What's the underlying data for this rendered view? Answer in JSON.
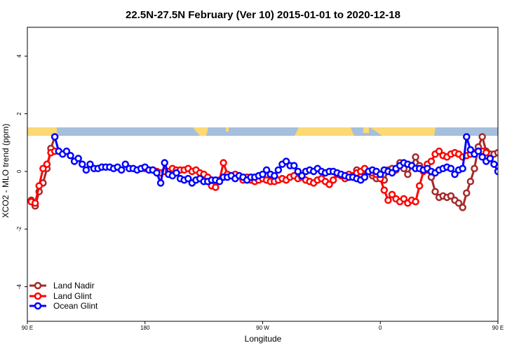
{
  "chart_data": {
    "type": "line",
    "title": "22.5N-27.5N February (Ver 10)   2015-01-01 to 2020-12-18",
    "xlabel": "Longitude",
    "ylabel": "XCO2 - MLO trend (ppm)",
    "xlim": [
      90,
      450
    ],
    "ylim": [
      -5.2,
      5.0
    ],
    "xticks": [
      {
        "value": 90,
        "label": "90 E"
      },
      {
        "value": 180,
        "label": "180"
      },
      {
        "value": 270,
        "label": "90 W"
      },
      {
        "value": 360,
        "label": "0"
      },
      {
        "value": 450,
        "label": "90 E"
      },
      {
        "value": 540,
        "label": "180"
      }
    ],
    "yticks": [
      -4,
      -2,
      0,
      2,
      4
    ],
    "grid": false,
    "legend_position": "bottom-left",
    "land_color": "#fcd972",
    "ocean_color": "#a5bfdc",
    "series": [
      {
        "name": "Land Nadir",
        "color": "#a52a2a",
        "x": [
          93,
          96,
          99,
          102,
          105,
          108,
          111,
          339,
          342,
          345,
          351,
          354,
          357,
          360,
          363,
          366,
          369,
          372,
          375,
          378,
          381,
          384,
          387,
          390,
          393,
          396,
          399,
          402,
          405,
          408,
          411,
          414,
          417,
          420,
          423,
          426,
          429,
          432,
          435,
          438,
          441,
          444,
          447,
          450,
          453,
          456,
          459,
          462,
          465
        ],
        "y": [
          -1.0,
          -1.2,
          -0.7,
          -0.4,
          0.1,
          0.8,
          1.2,
          -0.2,
          0.05,
          -0.1,
          0.0,
          -0.15,
          -0.25,
          -0.2,
          -0.3,
          0.05,
          0.1,
          0.05,
          0.3,
          0.1,
          -0.1,
          0.2,
          0.5,
          0.2,
          0.05,
          0.05,
          -0.2,
          -0.7,
          -0.9,
          -0.85,
          -0.9,
          -0.85,
          -1.0,
          -1.1,
          -1.25,
          -0.75,
          -0.35,
          0.1,
          0.85,
          1.2,
          0.7,
          0.6,
          0.6,
          0.65,
          0.5,
          0.45,
          0.5,
          0.55,
          0.6
        ]
      },
      {
        "name": "Land Glint",
        "color": "#ff0000",
        "x": [
          93,
          96,
          99,
          102,
          105,
          108,
          111,
          180,
          183,
          186,
          189,
          192,
          195,
          198,
          201,
          204,
          207,
          210,
          213,
          216,
          219,
          222,
          225,
          228,
          231,
          234,
          237,
          240,
          243,
          246,
          249,
          252,
          255,
          258,
          261,
          264,
          267,
          270,
          273,
          276,
          279,
          282,
          285,
          288,
          291,
          294,
          297,
          300,
          303,
          306,
          309,
          312,
          315,
          318,
          321,
          324,
          327,
          330,
          333,
          336,
          339,
          342,
          345,
          348,
          351,
          354,
          357,
          360,
          363,
          366,
          369,
          372,
          375,
          378,
          381,
          384,
          387,
          390,
          393,
          396,
          399,
          402,
          405,
          408,
          411,
          414,
          417,
          420,
          423,
          426,
          429,
          432,
          435,
          438,
          441
        ],
        "y": [
          -1.05,
          -1.1,
          -0.5,
          0.1,
          0.25,
          0.65,
          0.7,
          0.1,
          0.05,
          0.05,
          0.0,
          -0.05,
          0.0,
          0.0,
          0.1,
          0.05,
          0.05,
          0.05,
          0.1,
          0.0,
          0.05,
          -0.05,
          -0.1,
          -0.2,
          -0.5,
          -0.55,
          -0.3,
          0.3,
          -0.1,
          -0.15,
          -0.1,
          -0.15,
          -0.3,
          -0.2,
          -0.3,
          -0.35,
          -0.3,
          -0.25,
          -0.3,
          -0.35,
          -0.35,
          -0.3,
          -0.25,
          -0.3,
          -0.2,
          -0.15,
          -0.25,
          -0.2,
          -0.3,
          -0.35,
          -0.4,
          -0.3,
          -0.25,
          -0.35,
          -0.45,
          -0.3,
          -0.1,
          -0.15,
          -0.25,
          -0.1,
          -0.15,
          -0.05,
          0.0,
          0.1,
          0.0,
          -0.05,
          -0.1,
          -0.25,
          -0.65,
          -1.0,
          -0.8,
          -0.95,
          -1.05,
          -0.95,
          -1.1,
          -1.0,
          -1.05,
          -0.5,
          0.0,
          0.25,
          0.35,
          0.6,
          0.7,
          0.55,
          0.5,
          0.6,
          0.65,
          0.6,
          0.5,
          0.55,
          0.6,
          0.65,
          0.7,
          0.7,
          0.65
        ]
      },
      {
        "name": "Ocean Glint",
        "color": "#0000ff",
        "x": [
          111,
          114,
          117,
          120,
          123,
          126,
          129,
          132,
          135,
          138,
          141,
          144,
          147,
          150,
          153,
          156,
          159,
          162,
          165,
          168,
          171,
          174,
          177,
          180,
          183,
          186,
          189,
          192,
          195,
          198,
          201,
          204,
          207,
          210,
          213,
          216,
          219,
          222,
          225,
          228,
          231,
          234,
          237,
          240,
          243,
          246,
          249,
          252,
          255,
          258,
          261,
          264,
          267,
          270,
          273,
          276,
          279,
          282,
          285,
          288,
          291,
          294,
          297,
          300,
          303,
          306,
          309,
          312,
          315,
          318,
          321,
          324,
          327,
          330,
          333,
          336,
          339,
          342,
          345,
          348,
          351,
          354,
          357,
          360,
          363,
          366,
          369,
          372,
          375,
          378,
          381,
          384,
          387,
          390,
          393,
          396,
          399,
          402,
          405,
          408,
          411,
          414,
          417,
          420,
          423,
          426,
          429,
          432,
          435,
          438,
          441,
          444,
          447,
          450,
          453,
          456,
          459,
          462,
          465
        ],
        "y": [
          1.2,
          0.7,
          0.6,
          0.7,
          0.55,
          0.35,
          0.45,
          0.25,
          0.05,
          0.25,
          0.1,
          0.1,
          0.15,
          0.15,
          0.15,
          0.1,
          0.15,
          0.05,
          0.25,
          0.1,
          0.1,
          0.05,
          0.1,
          0.15,
          0.05,
          0.05,
          -0.05,
          -0.4,
          0.3,
          -0.1,
          -0.15,
          -0.05,
          -0.25,
          -0.3,
          -0.25,
          -0.4,
          -0.3,
          -0.25,
          -0.35,
          -0.35,
          -0.3,
          -0.3,
          -0.35,
          -0.2,
          -0.2,
          -0.15,
          -0.25,
          -0.15,
          -0.2,
          -0.3,
          -0.2,
          -0.2,
          -0.15,
          -0.1,
          0.05,
          -0.1,
          -0.15,
          0.05,
          0.25,
          0.35,
          0.2,
          0.2,
          0.0,
          -0.15,
          0.0,
          0.05,
          0.0,
          0.1,
          0.0,
          -0.05,
          0.0,
          0.0,
          -0.05,
          -0.1,
          -0.15,
          -0.2,
          -0.2,
          -0.25,
          -0.3,
          -0.2,
          0.0,
          0.05,
          0.0,
          -0.1,
          0.05,
          0.0,
          -0.05,
          0.1,
          0.2,
          0.3,
          0.25,
          0.2,
          0.1,
          0.1,
          0.05,
          0.1,
          0.0,
          -0.05,
          0.05,
          0.1,
          0.15,
          0.1,
          -0.1,
          0.05,
          0.1,
          1.2,
          0.75,
          0.6,
          0.7,
          0.5,
          0.35,
          0.45,
          0.25,
          0.0,
          0.25,
          0.1,
          0.1,
          0.15,
          0.15
        ]
      }
    ]
  }
}
